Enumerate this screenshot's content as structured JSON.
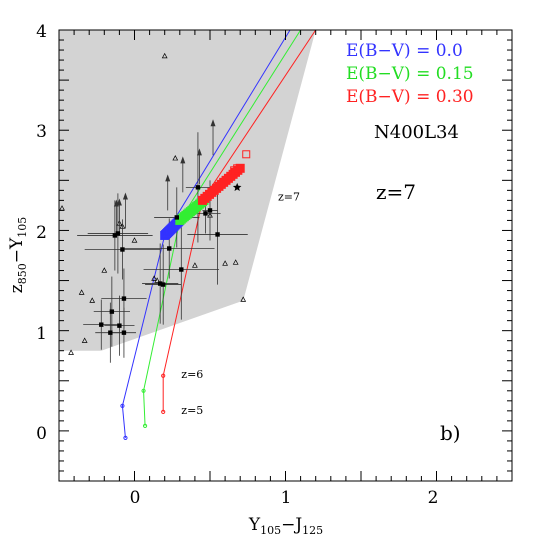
{
  "chart_data": {
    "type": "scatter",
    "xlabel": "Y105−J125",
    "ylabel": "z850−Y105",
    "xlim": [
      -0.5,
      2.5
    ],
    "ylim": [
      -0.5,
      4.0
    ],
    "x_ticks": [
      "0",
      "1",
      "2"
    ],
    "y_ticks": [
      "0",
      "1",
      "2",
      "3",
      "4"
    ],
    "grid": false,
    "legend_position": "top-right",
    "field_label": "N400L34",
    "redshift_label": "z=7",
    "panel_label": "b)",
    "selection_region": {
      "color": "#d3d3d3",
      "points": [
        [
          -0.5,
          4.0
        ],
        [
          1.2,
          4.0
        ],
        [
          0.72,
          1.3
        ],
        [
          -0.22,
          0.8
        ],
        [
          -0.5,
          0.8
        ]
      ]
    },
    "tracks": [
      {
        "name": "E(B−V) = 0.0",
        "color": "#3333ff",
        "points": [
          [
            -0.06,
            -0.07
          ],
          [
            -0.08,
            0.25
          ],
          [
            0.2,
            1.95
          ],
          [
            1.03,
            4.0
          ]
        ],
        "cluster": {
          "from": [
            0.2,
            1.95
          ],
          "to": [
            0.3,
            2.1
          ]
        }
      },
      {
        "name": "E(B−V) = 0.15",
        "color": "#33ee33",
        "points": [
          [
            0.07,
            0.05
          ],
          [
            0.06,
            0.4
          ],
          [
            0.3,
            2.1
          ],
          [
            1.1,
            4.0
          ]
        ],
        "cluster": {
          "from": [
            0.3,
            2.1
          ],
          "to": [
            0.46,
            2.3
          ]
        }
      },
      {
        "name": "E(B−V) = 0.30",
        "color": "#ff2222",
        "points": [
          [
            0.19,
            0.19
          ],
          [
            0.19,
            0.55
          ],
          [
            0.45,
            2.3
          ],
          [
            1.2,
            4.0
          ]
        ],
        "cluster": {
          "from": [
            0.45,
            2.3
          ],
          "to": [
            0.7,
            2.62
          ]
        }
      }
    ],
    "track_labels": [
      {
        "text": "z=6",
        "at": [
          0.31,
          0.53
        ]
      },
      {
        "text": "z=5",
        "at": [
          0.31,
          0.17
        ]
      },
      {
        "text": "z=7",
        "at": [
          0.95,
          2.3
        ]
      }
    ],
    "candidates": [
      {
        "x": -0.22,
        "y": 1.06,
        "xerr": 0.12,
        "yerr": 0.25
      },
      {
        "x": -0.1,
        "y": 1.05,
        "xerr": 0.1,
        "yerr": 0.3
      },
      {
        "x": -0.16,
        "y": 0.98,
        "xerr": 0.1,
        "yerr": 0.3
      },
      {
        "x": -0.07,
        "y": 0.98,
        "xerr": 0.08,
        "yerr": 0.25
      },
      {
        "x": -0.07,
        "y": 1.32,
        "xerr": 0.15,
        "yerr": 0.3
      },
      {
        "x": -0.15,
        "y": 1.19,
        "xerr": 0.12,
        "yerr": 0.35
      },
      {
        "x": 0.17,
        "y": 1.47,
        "xerr": 0.12,
        "yerr": 0.4
      },
      {
        "x": 0.19,
        "y": 1.46,
        "xerr": 0.12,
        "yerr": 0.4
      },
      {
        "x": 0.31,
        "y": 1.61,
        "xerr": 0.25,
        "yerr": 0.5
      },
      {
        "x": -0.13,
        "y": 1.95,
        "xerr": 0.25,
        "yerr": 0.35
      },
      {
        "x": -0.11,
        "y": 1.97,
        "xerr": 0.2,
        "yerr": 0.4
      },
      {
        "x": -0.08,
        "y": 1.81,
        "xerr": 0.25,
        "yerr": 0.3
      },
      {
        "x": 0.23,
        "y": 1.82,
        "xerr": 0.3,
        "yerr": 0.3
      },
      {
        "x": 0.28,
        "y": 2.13,
        "xerr": 0.15,
        "yerr": 0.3
      },
      {
        "x": 0.42,
        "y": 2.43,
        "xerr": 0.08,
        "yerr": 0.55
      },
      {
        "x": 0.5,
        "y": 2.2,
        "xerr": 0.05,
        "yerr": 0.3
      },
      {
        "x": 0.55,
        "y": 1.96,
        "xerr": 0.2,
        "yerr": 0.5
      },
      {
        "x": 0.47,
        "y": 2.17,
        "xerr": 0.1,
        "yerr": 0.2
      }
    ],
    "stars": [
      {
        "x": 0.68,
        "y": 2.43
      }
    ],
    "lower_limits": [
      {
        "x": -0.12,
        "y": 1.95
      },
      {
        "x": -0.1,
        "y": 1.96
      },
      {
        "x": -0.06,
        "y": 2.02
      },
      {
        "x": 0.22,
        "y": 2.2
      },
      {
        "x": 0.32,
        "y": 2.38
      },
      {
        "x": 0.43,
        "y": 2.46
      },
      {
        "x": 0.52,
        "y": 2.75
      }
    ],
    "triangles": [
      [
        -0.48,
        2.22
      ],
      [
        -0.35,
        1.38
      ],
      [
        -0.28,
        1.3
      ],
      [
        -0.33,
        0.9
      ],
      [
        -0.42,
        0.78
      ],
      [
        -0.2,
        1.6
      ],
      [
        -0.1,
        2.07
      ],
      [
        -0.08,
        2.04
      ],
      [
        0.0,
        1.9
      ],
      [
        0.13,
        1.52
      ],
      [
        0.15,
        1.5
      ],
      [
        0.2,
        3.74
      ],
      [
        0.27,
        2.72
      ],
      [
        0.35,
        2.17
      ],
      [
        0.4,
        1.65
      ],
      [
        0.5,
        2.15
      ],
      [
        0.6,
        1.67
      ],
      [
        0.67,
        1.68
      ],
      [
        0.72,
        1.31
      ]
    ],
    "open_squares": [
      [
        0.66,
        2.6
      ],
      [
        0.68,
        2.62
      ],
      [
        0.74,
        2.76
      ]
    ]
  }
}
